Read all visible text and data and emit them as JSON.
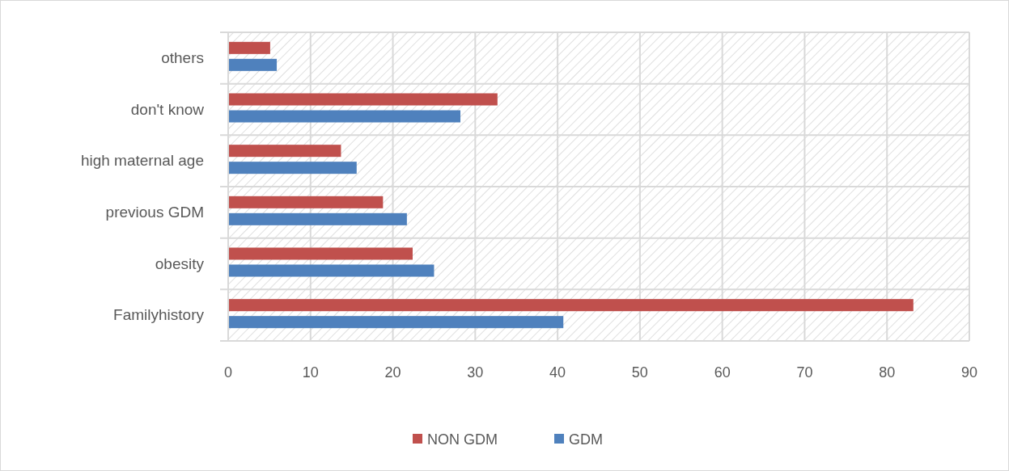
{
  "chart_data": {
    "type": "bar",
    "orientation": "horizontal",
    "categories": [
      "others",
      "don't know",
      "high maternal age",
      "previous GDM",
      "obesity",
      "Familyhistory"
    ],
    "series": [
      {
        "name": "NON GDM",
        "color": "#c0504d",
        "values": [
          5.1,
          32.7,
          13.7,
          18.8,
          22.4,
          83.2
        ]
      },
      {
        "name": "GDM",
        "color": "#4f81bd",
        "values": [
          5.9,
          28.2,
          15.6,
          21.7,
          25,
          40.7
        ]
      }
    ],
    "xlim": [
      0,
      90
    ],
    "xticks": [
      0,
      10,
      20,
      30,
      40,
      50,
      60,
      70,
      80,
      90
    ],
    "grid": true,
    "legend": "bottom"
  }
}
